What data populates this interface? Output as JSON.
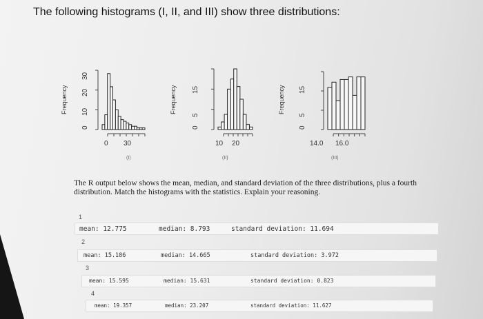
{
  "title": "The following histograms (I, II, and III) show three distributions:",
  "chart_data": [
    {
      "type": "bar",
      "title": "",
      "ylabel": "Frequency",
      "xticks": [
        "0",
        "30"
      ],
      "yticks": [
        "0",
        "10",
        "20",
        "30"
      ],
      "caption": "(I)",
      "values": [
        3,
        9,
        34,
        26,
        18,
        12,
        8,
        6,
        5,
        4,
        3,
        2,
        2,
        1,
        1,
        1
      ],
      "ylim": [
        0,
        36
      ]
    },
    {
      "type": "bar",
      "title": "",
      "ylabel": "Frequency",
      "xticks": [
        "10",
        "20"
      ],
      "yticks": [
        "0",
        "5",
        "15"
      ],
      "caption": "(II)",
      "values": [
        1,
        3,
        6,
        16,
        20,
        24,
        17,
        12,
        6,
        2,
        1
      ],
      "ylim": [
        0,
        24
      ]
    },
    {
      "type": "bar",
      "title": "",
      "ylabel": "Frequency",
      "xticks": [
        "14.0",
        "16.0"
      ],
      "yticks": [
        "0",
        "5",
        "15"
      ],
      "caption": "(III)",
      "values": [
        16,
        18,
        11,
        19,
        19,
        20,
        13,
        20,
        20
      ],
      "ylim": [
        0,
        22
      ]
    }
  ],
  "prompt": "The R output below shows the mean, median, and standard deviation of the three distributions, plus a fourth distribution. Match the histograms with the statistics. Explain your reasoning.",
  "outputs": [
    {
      "num": "1",
      "mean": "mean: 12.775",
      "median": "median: 8.793",
      "sd": "standard deviation: 11.694"
    },
    {
      "num": "2",
      "mean": "mean: 15.186",
      "median": "median: 14.665",
      "sd": "standard deviation: 3.972"
    },
    {
      "num": "3",
      "mean": "mean: 15.595",
      "median": "median: 15.631",
      "sd": "standard deviation: 0.823"
    },
    {
      "num": "4",
      "mean": "mean: 19.357",
      "median": "median: 23.207",
      "sd": "standard deviation: 11.627"
    }
  ]
}
